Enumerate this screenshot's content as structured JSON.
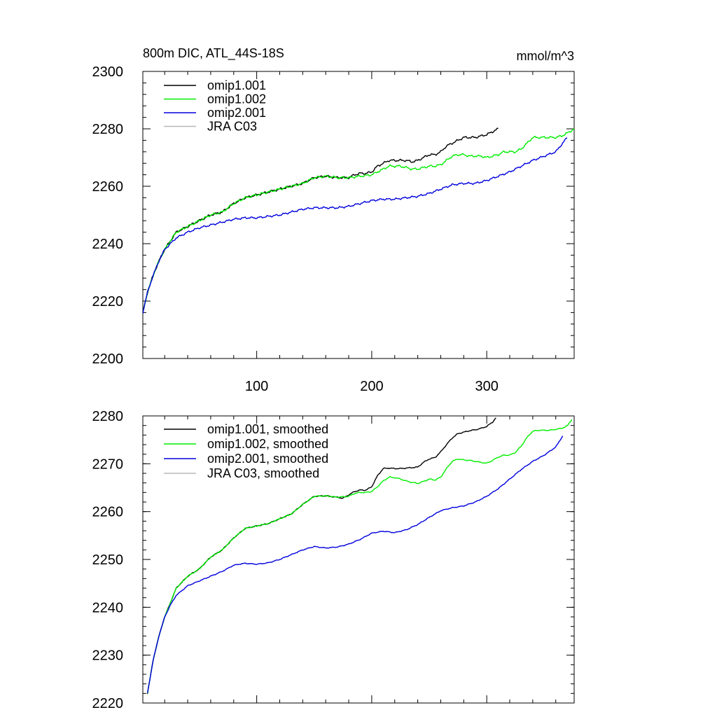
{
  "figure": {
    "left_title": "800m DIC, ATL_44S-18S",
    "right_title": "mmol/m^3"
  },
  "colors": {
    "omip1_001": "#000000",
    "omip1_002": "#00ee00",
    "omip2_001": "#0000dd",
    "jra_c03": "#b8b8b8"
  },
  "chart_data": [
    {
      "type": "line",
      "title": "800m DIC, ATL_44S-18S",
      "units": "mmol/m^3",
      "xlim": [
        1,
        376
      ],
      "ylim": [
        2200,
        2300
      ],
      "x_ticks": [
        100,
        200,
        300
      ],
      "x_tick_labels": [
        "100",
        "200",
        "300"
      ],
      "y_ticks": [
        2200,
        2220,
        2240,
        2260,
        2280,
        2300
      ],
      "y_tick_labels": [
        "2200",
        "2220",
        "2240",
        "2260",
        "2280",
        "2300"
      ],
      "legend_position": "top-left",
      "series": [
        {
          "name": "omip1.001",
          "color": "#000000",
          "noise": 0.45,
          "x": [
            1,
            5,
            10,
            15,
            20,
            25,
            30,
            40,
            50,
            60,
            70,
            80,
            90,
            100,
            110,
            120,
            130,
            140,
            150,
            160,
            170,
            180,
            185,
            190,
            195,
            200,
            205,
            210,
            215,
            220,
            225,
            230,
            235,
            240,
            245,
            250,
            255,
            260,
            265,
            270,
            275,
            280,
            285,
            290,
            295,
            300,
            305,
            310
          ],
          "y": [
            2216,
            2223,
            2229,
            2234,
            2238,
            2241,
            2244,
            2246,
            2248,
            2250,
            2251,
            2254,
            2256,
            2257,
            2258,
            2259,
            2260,
            2261,
            2263,
            2263.5,
            2263,
            2263,
            2264,
            2264.5,
            2264.5,
            2265,
            2267,
            2268,
            2269,
            2269,
            2269,
            2269,
            2268.5,
            2269,
            2270,
            2271,
            2271,
            2272,
            2274,
            2275,
            2276,
            2277,
            2277,
            2277,
            2277.5,
            2278,
            2279,
            2280
          ]
        },
        {
          "name": "omip1.002",
          "color": "#00ee00",
          "noise": 0.45,
          "x": [
            1,
            5,
            10,
            15,
            20,
            25,
            30,
            40,
            50,
            60,
            70,
            80,
            90,
            100,
            110,
            120,
            130,
            140,
            150,
            160,
            170,
            180,
            190,
            200,
            205,
            210,
            215,
            220,
            225,
            230,
            235,
            240,
            245,
            250,
            255,
            260,
            265,
            270,
            275,
            280,
            285,
            290,
            295,
            300,
            305,
            310,
            315,
            320,
            325,
            330,
            335,
            340,
            345,
            350,
            355,
            360,
            365,
            370,
            376
          ],
          "y": [
            2216,
            2223,
            2229,
            2234,
            2238,
            2241,
            2244,
            2246,
            2248,
            2250,
            2251,
            2254,
            2256,
            2257,
            2258,
            2259,
            2260,
            2261,
            2263,
            2263.5,
            2263,
            2263,
            2263.5,
            2264,
            2265,
            2266,
            2267,
            2267,
            2267,
            2266.5,
            2266,
            2266,
            2266.5,
            2267,
            2267,
            2267.5,
            2269,
            2270.5,
            2271,
            2271,
            2270.5,
            2270.5,
            2270.5,
            2270,
            2270.5,
            2271,
            2272,
            2272,
            2272,
            2273,
            2275,
            2277,
            2277,
            2277,
            2277,
            2277,
            2277.5,
            2278.5,
            2280
          ]
        },
        {
          "name": "omip2.001",
          "color": "#0000dd",
          "noise": 0.4,
          "x": [
            1,
            5,
            10,
            15,
            20,
            25,
            30,
            40,
            50,
            60,
            70,
            80,
            90,
            100,
            110,
            120,
            130,
            140,
            150,
            160,
            170,
            180,
            190,
            200,
            210,
            220,
            230,
            240,
            250,
            260,
            270,
            280,
            290,
            300,
            310,
            320,
            330,
            340,
            350,
            360,
            370
          ],
          "y": [
            2216,
            2223,
            2229,
            2234,
            2238,
            2240,
            2242,
            2244,
            2245.5,
            2246.5,
            2247.5,
            2248.5,
            2249,
            2249,
            2249.5,
            2250,
            2251,
            2252,
            2252.5,
            2252.5,
            2252.5,
            2253,
            2254,
            2255,
            2255.5,
            2255.5,
            2256,
            2256.5,
            2257.5,
            2259,
            2260.5,
            2261,
            2261,
            2262,
            2263.5,
            2265,
            2267,
            2269,
            2270.5,
            2272,
            2277
          ]
        },
        {
          "name": "JRA C03",
          "color": "#b8b8b8",
          "x": [],
          "y": []
        }
      ]
    },
    {
      "type": "line",
      "xlim": [
        1,
        376
      ],
      "ylim": [
        2220,
        2280
      ],
      "x_ticks": [
        100,
        200,
        300
      ],
      "x_tick_labels": [],
      "y_ticks": [
        2220,
        2230,
        2240,
        2250,
        2260,
        2270,
        2280
      ],
      "y_tick_labels": [
        "2220",
        "2230",
        "2240",
        "2250",
        "2260",
        "2270",
        "2280"
      ],
      "legend_position": "top-left",
      "series": [
        {
          "name": "omip1.001, smoothed",
          "color": "#000000",
          "noise": 0.12,
          "x": [
            5,
            10,
            15,
            20,
            25,
            30,
            40,
            50,
            60,
            70,
            80,
            90,
            100,
            110,
            120,
            130,
            140,
            150,
            160,
            170,
            175,
            180,
            185,
            190,
            195,
            200,
            205,
            210,
            215,
            220,
            225,
            230,
            235,
            240,
            245,
            250,
            255,
            260,
            265,
            270,
            275,
            280,
            285,
            290,
            295,
            300,
            305,
            308
          ],
          "y": [
            2222,
            2229,
            2234,
            2238,
            2241,
            2244,
            2246.5,
            2248,
            2250.5,
            2252,
            2254.5,
            2256.5,
            2257,
            2257.5,
            2258.5,
            2259.5,
            2261.5,
            2263.2,
            2263.3,
            2263,
            2262.8,
            2263.5,
            2264.2,
            2264.5,
            2264.5,
            2265.2,
            2267.5,
            2269,
            2269.1,
            2269,
            2269,
            2269.1,
            2269.2,
            2269.3,
            2270.3,
            2271,
            2271.3,
            2272.5,
            2274,
            2275.4,
            2276.3,
            2276.6,
            2276.9,
            2277.1,
            2277.4,
            2277.8,
            2278.7,
            2279.6
          ]
        },
        {
          "name": "omip1.002, smoothed",
          "color": "#00ee00",
          "noise": 0.12,
          "x": [
            5,
            10,
            15,
            20,
            25,
            30,
            40,
            50,
            60,
            70,
            80,
            90,
            100,
            110,
            120,
            130,
            140,
            150,
            160,
            170,
            180,
            185,
            190,
            195,
            200,
            205,
            210,
            215,
            220,
            225,
            230,
            235,
            240,
            245,
            250,
            255,
            260,
            265,
            270,
            275,
            280,
            285,
            290,
            295,
            300,
            305,
            310,
            315,
            320,
            325,
            330,
            335,
            340,
            345,
            350,
            355,
            360,
            365,
            370,
            374
          ],
          "y": [
            2222,
            2229,
            2234,
            2238,
            2241,
            2244,
            2246.5,
            2248,
            2250.5,
            2252,
            2254.5,
            2256.5,
            2257,
            2257.5,
            2258.5,
            2259.5,
            2261.5,
            2263.2,
            2263.3,
            2263,
            2263.2,
            2263.8,
            2264,
            2264,
            2264.2,
            2265.2,
            2266.4,
            2267.2,
            2267.1,
            2266.8,
            2266.4,
            2266.1,
            2265.9,
            2266.3,
            2266.8,
            2266.6,
            2267.2,
            2269,
            2270.5,
            2271,
            2270.8,
            2270.7,
            2270.5,
            2270.3,
            2270.1,
            2270.7,
            2271.4,
            2271.8,
            2271.8,
            2272.4,
            2273.7,
            2275.5,
            2276.8,
            2277,
            2277,
            2277,
            2277.2,
            2277.4,
            2277.9,
            2279.3
          ]
        },
        {
          "name": "omip2.001, smoothed",
          "color": "#0000dd",
          "noise": 0.1,
          "x": [
            5,
            10,
            15,
            20,
            25,
            30,
            40,
            50,
            60,
            70,
            80,
            90,
            100,
            110,
            120,
            130,
            140,
            150,
            160,
            170,
            180,
            190,
            200,
            210,
            220,
            230,
            240,
            250,
            260,
            270,
            280,
            290,
            300,
            310,
            320,
            330,
            340,
            350,
            360,
            366
          ],
          "y": [
            2222,
            2229,
            2234,
            2238,
            2240.5,
            2242.5,
            2244.5,
            2245.5,
            2246.5,
            2247.5,
            2248.8,
            2249.2,
            2249,
            2249.3,
            2250,
            2251,
            2252,
            2252.7,
            2252.4,
            2252.6,
            2253.2,
            2254.2,
            2255.5,
            2255.9,
            2255.6,
            2256.2,
            2257.3,
            2258.8,
            2260.2,
            2260.8,
            2261.2,
            2262,
            2263.2,
            2264.8,
            2266.8,
            2268.8,
            2270.5,
            2271.8,
            2273.5,
            2275.8
          ]
        },
        {
          "name": "JRA C03, smoothed",
          "color": "#b8b8b8",
          "x": [],
          "y": []
        }
      ]
    }
  ]
}
